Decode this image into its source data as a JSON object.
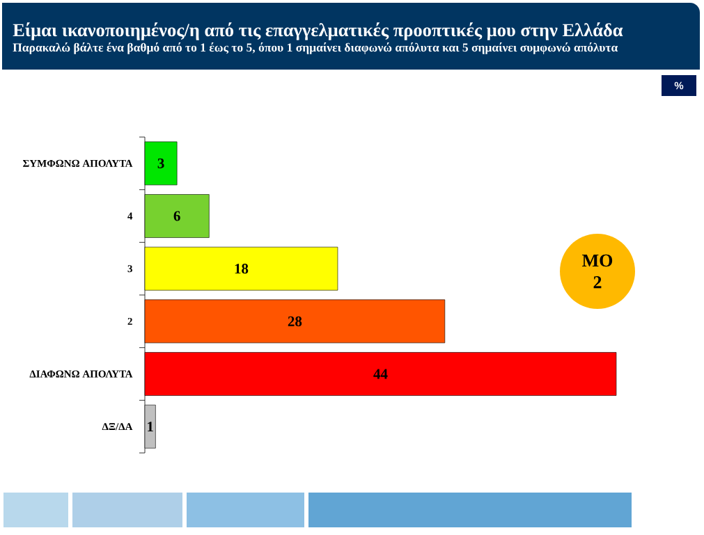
{
  "chart_data": {
    "type": "bar",
    "orientation": "horizontal",
    "title": "Είμαι ικανοποιημένος/η από τις επαγγελματικές προοπτικές μου στην Ελλάδα",
    "subtitle": "Παρακαλώ βάλτε ένα βαθμό από το 1 έως το 5, όπου 1 σημαίνει διαφωνώ απόλυτα και 5 σημαίνει συμφωνώ απόλυτα",
    "categories": [
      "ΣΥΜΦΩΝΩ ΑΠΟΛΥΤΑ",
      "4",
      "3",
      "2",
      "ΔΙΑΦΩΝΩ ΑΠΟΛΥΤΑ",
      "ΔΞ/ΔΑ"
    ],
    "values": [
      3,
      6,
      18,
      28,
      44,
      1
    ],
    "colors": [
      "#00e600",
      "#77d12f",
      "#ffff00",
      "#ff5500",
      "#ff0000",
      "#c0c0c0"
    ],
    "data_labels": true,
    "annotations": [
      "%",
      "ΜΟ 2"
    ]
  }
}
